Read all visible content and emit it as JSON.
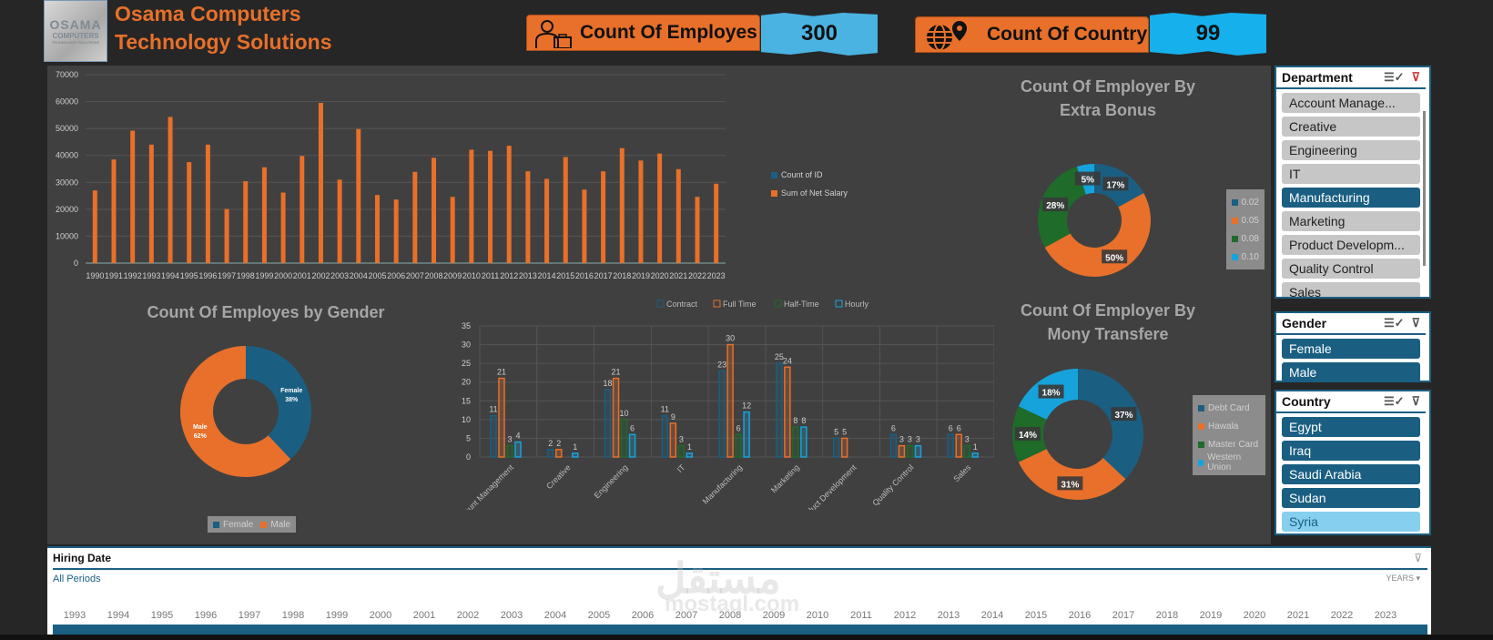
{
  "header": {
    "logo": {
      "line1": "OSAMA",
      "line2": "COMPUTERS",
      "line3": "TECHNOLOGY SOLUTIONS"
    },
    "company_line1": "Osama Computers",
    "company_line2": "Technology Solutions",
    "kpis": [
      {
        "label": "Count Of Employes",
        "value": "300",
        "icon": "employee-briefcase-icon"
      },
      {
        "label": "Count Of Country",
        "value": "99",
        "icon": "globe-pin-icon"
      }
    ]
  },
  "colors": {
    "orange": "#E8702A",
    "dark_blue": "#1a5f82",
    "green": "#1e6b2a",
    "light_blue": "#16A3DC",
    "panel": "#404040"
  },
  "chart_data": [
    {
      "type": "bar",
      "title": "",
      "categories": [
        "1990",
        "1991",
        "1992",
        "1993",
        "1994",
        "1995",
        "1996",
        "1997",
        "1998",
        "1999",
        "2000",
        "2001",
        "2002",
        "2003",
        "2004",
        "2005",
        "2006",
        "2007",
        "2008",
        "2009",
        "2010",
        "2011",
        "2012",
        "2013",
        "2014",
        "2015",
        "2016",
        "2017",
        "2018",
        "2019",
        "2020",
        "2021",
        "2022",
        "2023"
      ],
      "series": [
        {
          "name": "Count of ID",
          "color": "#1a5f82",
          "values": [
            1,
            1,
            1,
            1,
            1,
            1,
            1,
            1,
            1,
            1,
            1,
            1,
            1,
            1,
            1,
            1,
            1,
            1,
            1,
            1,
            1,
            1,
            1,
            1,
            1,
            1,
            1,
            1,
            1,
            1,
            1,
            1,
            1,
            1
          ]
        },
        {
          "name": "Sum of Net Salary",
          "color": "#E8702A",
          "values": [
            27000,
            38500,
            49200,
            44000,
            54300,
            37500,
            44000,
            20100,
            30400,
            35600,
            26200,
            39800,
            59500,
            31000,
            49800,
            25300,
            23600,
            33900,
            39100,
            24600,
            42100,
            41700,
            43600,
            34100,
            31300,
            39400,
            27300,
            34100,
            42700,
            38100,
            40700,
            34900,
            24600,
            29500
          ]
        }
      ],
      "yticks": [
        0,
        10000,
        20000,
        30000,
        40000,
        50000,
        60000,
        70000
      ],
      "ylim": [
        0,
        70000
      ],
      "legend": "right",
      "grid": true
    },
    {
      "type": "pie",
      "title": "Count Of Employer By Extra Bonus",
      "labels": [
        "0.02",
        "0.05",
        "0.08",
        "0.10"
      ],
      "values": [
        17,
        50,
        28,
        5
      ],
      "data_labels": [
        "17%",
        "50%",
        "28%",
        "5%"
      ],
      "colors": [
        "#1a5f82",
        "#E8702A",
        "#1e6b2a",
        "#16A3DC"
      ],
      "legend": "right",
      "donut": true
    },
    {
      "type": "pie",
      "title": "Count Of Employes by Gender",
      "labels": [
        "Female",
        "Male"
      ],
      "values": [
        38,
        62
      ],
      "data_labels": [
        "Female\n38%",
        "Male\n62%"
      ],
      "colors": [
        "#1a5f82",
        "#E8702A"
      ],
      "legend": "bottom",
      "donut": true
    },
    {
      "type": "bar",
      "title": "",
      "categories": [
        "Account Management",
        "Creative",
        "Engineering",
        "IT",
        "Manufacturing",
        "Marketing",
        "Product Development",
        "Quality Control",
        "Sales"
      ],
      "series": [
        {
          "name": "Contract",
          "color": "#1a5f82",
          "values": [
            11,
            2,
            18,
            11,
            23,
            25,
            5,
            6,
            6
          ]
        },
        {
          "name": "Full Time",
          "color": "#E8702A",
          "values": [
            21,
            2,
            21,
            9,
            30,
            24,
            5,
            3,
            6
          ]
        },
        {
          "name": "Half-Time",
          "color": "#1e6b2a",
          "values": [
            3,
            0,
            10,
            3,
            6,
            8,
            0,
            3,
            3
          ]
        },
        {
          "name": "Hourly",
          "color": "#16A3DC",
          "values": [
            4,
            1,
            6,
            1,
            12,
            8,
            0,
            3,
            1
          ]
        }
      ],
      "yticks": [
        0,
        5,
        10,
        15,
        20,
        25,
        30,
        35
      ],
      "ylim": [
        0,
        35
      ],
      "legend": "top",
      "grid": true
    },
    {
      "type": "pie",
      "title": "Count Of Employer By Mony Transfere",
      "labels": [
        "Debt Card",
        "Hawala",
        "Master Card",
        "Western Union"
      ],
      "values": [
        37,
        31,
        14,
        18
      ],
      "data_labels": [
        "37%",
        "31%",
        "14%",
        "18%"
      ],
      "colors": [
        "#1a5f82",
        "#E8702A",
        "#1e6b2a",
        "#16A3DC"
      ],
      "legend": "right",
      "donut": true
    }
  ],
  "slicers": {
    "department": {
      "title": "Department",
      "items": [
        {
          "label": "Account Manage...",
          "state": "gray"
        },
        {
          "label": "Creative",
          "state": "gray"
        },
        {
          "label": "Engineering",
          "state": "gray"
        },
        {
          "label": "IT",
          "state": "gray"
        },
        {
          "label": "Manufacturing",
          "state": "blue"
        },
        {
          "label": "Marketing",
          "state": "gray"
        },
        {
          "label": "Product Developm...",
          "state": "gray"
        },
        {
          "label": "Quality Control",
          "state": "gray"
        },
        {
          "label": "Sales",
          "state": "gray"
        }
      ]
    },
    "gender": {
      "title": "Gender",
      "items": [
        {
          "label": "Female",
          "state": "blue"
        },
        {
          "label": "Male",
          "state": "blue"
        }
      ]
    },
    "country": {
      "title": "Country",
      "items": [
        {
          "label": "Egypt",
          "state": "blue"
        },
        {
          "label": "Iraq",
          "state": "blue"
        },
        {
          "label": "Saudi Arabia",
          "state": "blue"
        },
        {
          "label": "Sudan",
          "state": "blue"
        },
        {
          "label": "Syria",
          "state": "light"
        }
      ]
    }
  },
  "timeline": {
    "title": "Hiring Date",
    "period": "All Periods",
    "level": "YEARS",
    "years": [
      "1993",
      "1994",
      "1995",
      "1996",
      "1997",
      "1998",
      "1999",
      "2000",
      "2001",
      "2002",
      "2003",
      "2004",
      "2005",
      "2006",
      "2007",
      "2008",
      "2009",
      "2010",
      "2011",
      "2012",
      "2013",
      "2014",
      "2015",
      "2016",
      "2017",
      "2018",
      "2019",
      "2020",
      "2021",
      "2022",
      "2023"
    ]
  },
  "watermark": {
    "arabic": "مستقل",
    "latin": "mostaql.com"
  }
}
